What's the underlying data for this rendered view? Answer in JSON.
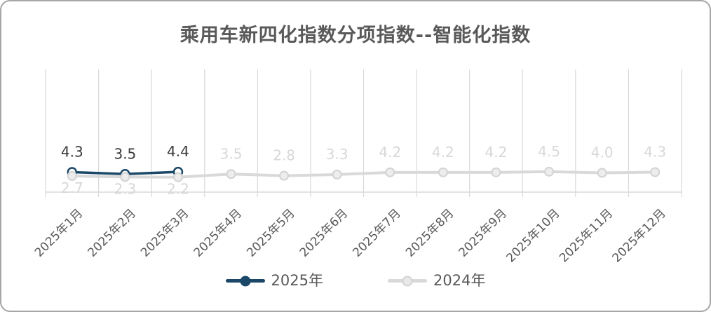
{
  "chart_data": {
    "type": "line",
    "title": "乘用车新四化指数分项指数--智能化指数",
    "xlabel": "",
    "ylabel": "",
    "categories": [
      "2025年1月",
      "2025年2月",
      "2025年3月",
      "2025年4月",
      "2025年5月",
      "2025年6月",
      "2025年7月",
      "2025年8月",
      "2025年9月",
      "2025年10月",
      "2025年11月",
      "2025年12月"
    ],
    "series": [
      {
        "name": "2025年",
        "color": "#1B4869",
        "marker_fill": "#FFFFFF",
        "marker_stroke": "#1B4869",
        "legend_dot_fill": "#1B4869",
        "legend_dot_stroke": "#1B4869",
        "label_color": "#3A3A3A",
        "values": [
          4.3,
          3.5,
          4.4,
          null,
          null,
          null,
          null,
          null,
          null,
          null,
          null,
          null
        ],
        "labels": [
          "4.3",
          "3.5",
          "4.4",
          "",
          "",
          "",
          "",
          "",
          "",
          "",
          "",
          ""
        ]
      },
      {
        "name": "2024年",
        "color": "#D9D9D9",
        "marker_fill": "#EDEDED",
        "marker_stroke": "#D3D3D3",
        "legend_dot_fill": "#E8E8E8",
        "legend_dot_stroke": "#D3D3D3",
        "label_color": "#D8D8D8",
        "values": [
          2.7,
          2.3,
          2.2,
          3.5,
          2.8,
          3.3,
          4.2,
          4.2,
          4.2,
          4.5,
          4.0,
          4.3
        ],
        "labels": [
          "2.7",
          "2.3",
          "2.2",
          "3.5",
          "2.8",
          "3.3",
          "4.2",
          "4.2",
          "4.2",
          "4.5",
          "4.0",
          "4.3"
        ]
      }
    ],
    "data_labels": true,
    "grid": "vertical-only",
    "y_axis_hidden": true,
    "ylim_estimated": [
      -4,
      47
    ],
    "legend_position": "bottom"
  },
  "legend": {
    "items": [
      {
        "label": "2025年"
      },
      {
        "label": "2024年"
      }
    ]
  },
  "colors": {
    "background": "#FFFFFF",
    "chart_border": "#A6A6A6",
    "grid": "#D9D9D9",
    "axis": "#D9D9D9",
    "title_text": "#595959",
    "axis_label_text": "#595959"
  }
}
